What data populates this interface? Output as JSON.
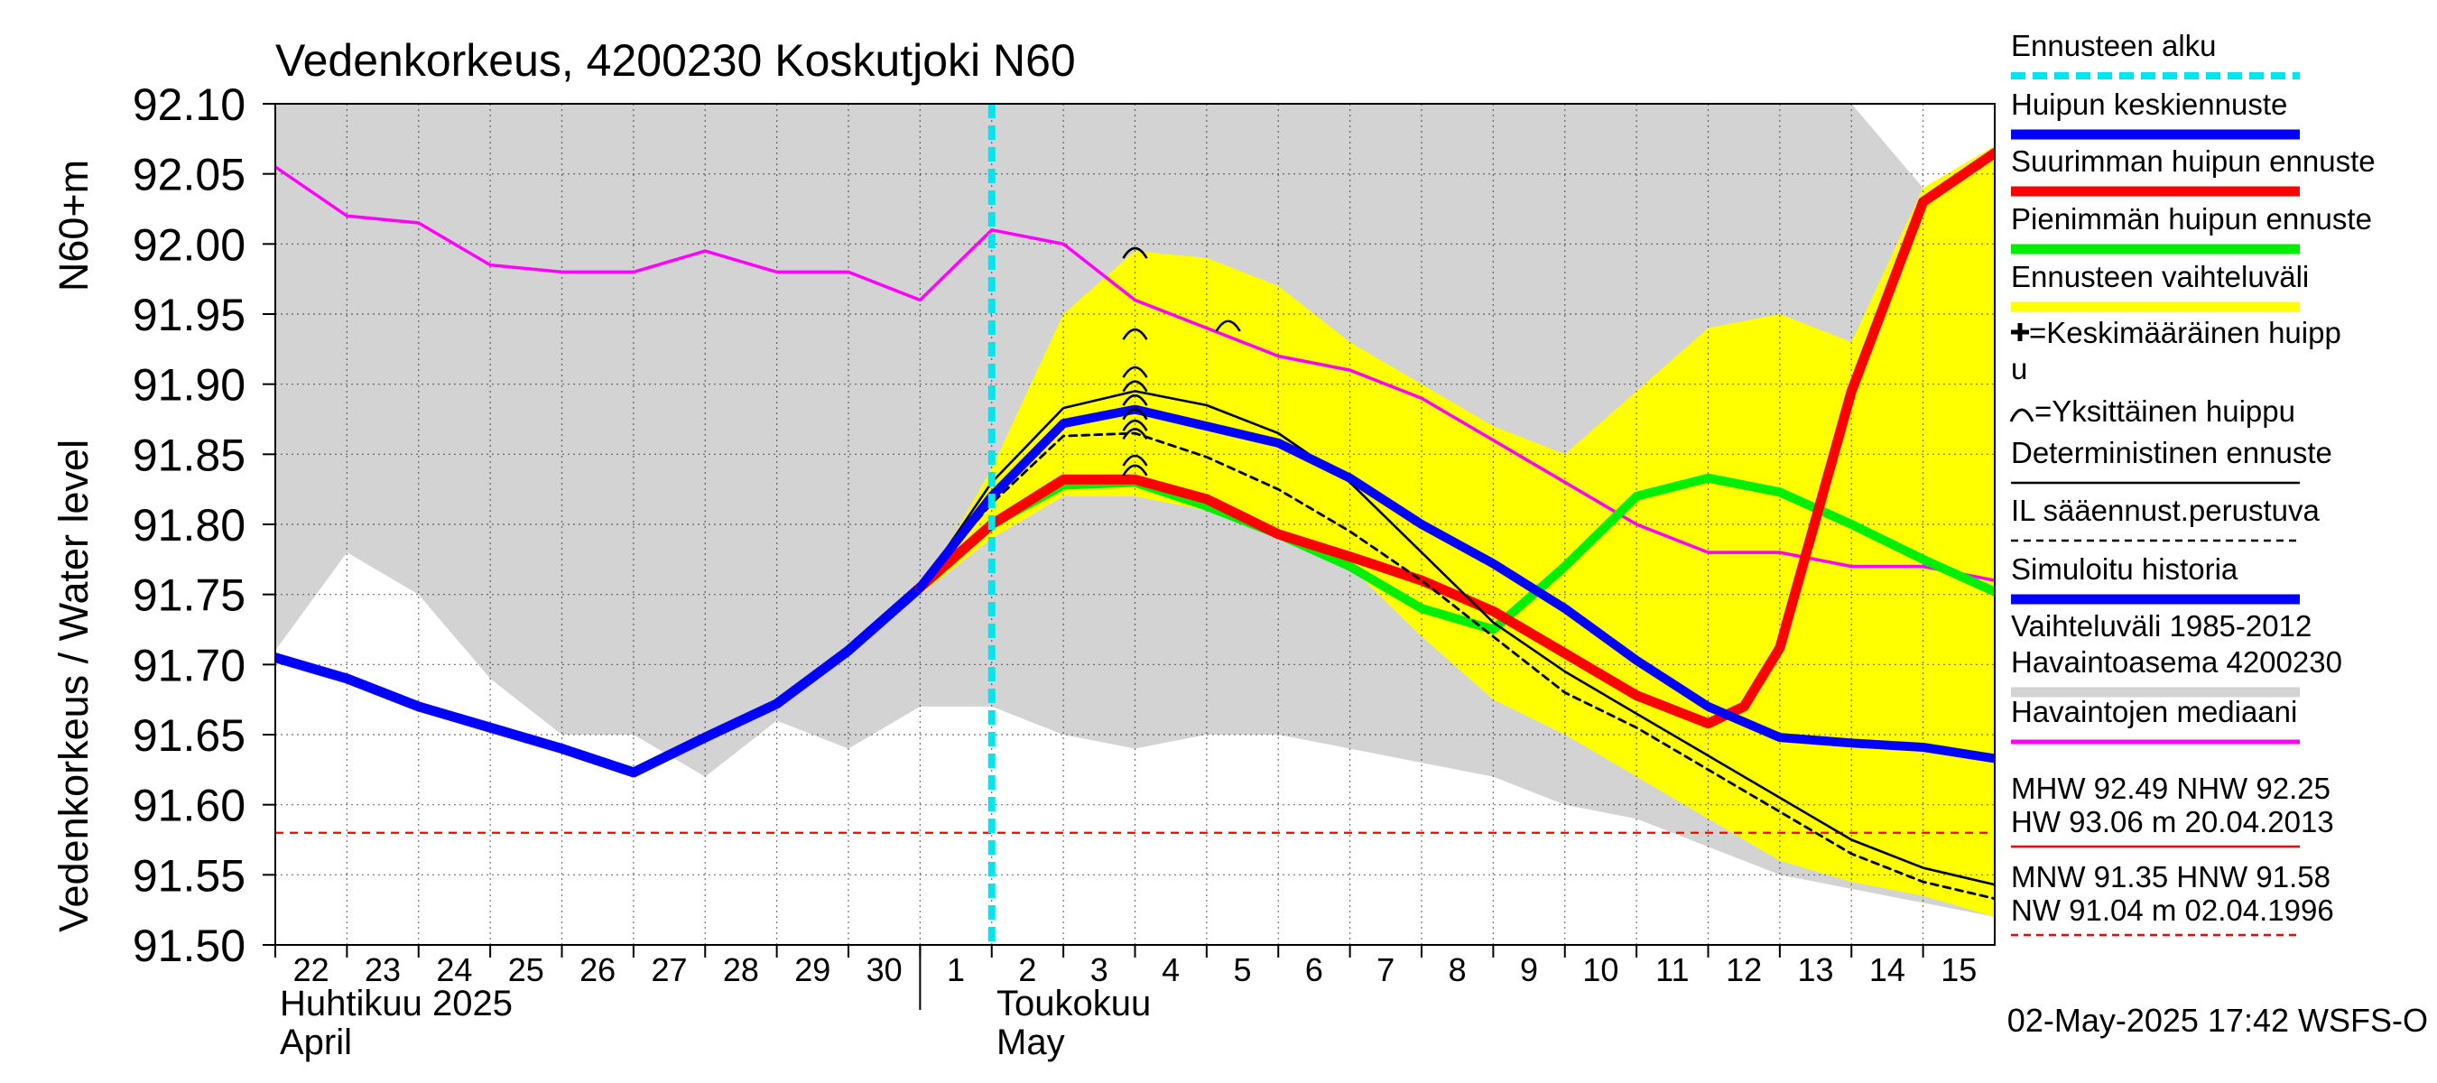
{
  "chart_data": {
    "type": "line",
    "title": "Vedenkorkeus, 4200230 Koskutjoki N60",
    "ylabel": "Vedenkorkeus / Water level",
    "ylabel_unit": "N60+m",
    "ylim": [
      91.5,
      92.1
    ],
    "yticks": [
      "92.10",
      "92.05",
      "92.00",
      "91.95",
      "91.90",
      "91.85",
      "91.80",
      "91.75",
      "91.70",
      "91.65",
      "91.60",
      "91.55",
      "91.50"
    ],
    "xlim": [
      0,
      24
    ],
    "xtick_labels": [
      "22",
      "23",
      "24",
      "25",
      "26",
      "27",
      "28",
      "29",
      "30",
      "1",
      "2",
      "3",
      "4",
      "5",
      "6",
      "7",
      "8",
      "9",
      "10",
      "11",
      "12",
      "13",
      "14",
      "15"
    ],
    "month_labels": {
      "april_fi": "Huhtikuu  2025",
      "april_en": "April",
      "may_fi": "Toukokuu",
      "may_en": "May"
    },
    "forecast_start_x": 10.0,
    "grid": true,
    "legend_position": "right",
    "legend": [
      {
        "label": "Ennusteen alku",
        "color": "#00e5ee",
        "style": "dashed-thick"
      },
      {
        "label": "Huipun keskiennuste",
        "color": "#0000ff",
        "style": "thick"
      },
      {
        "label": "Suurimman huipun ennuste",
        "color": "#ff0000",
        "style": "thick"
      },
      {
        "label": "Pienimmän huipun ennuste",
        "color": "#00ee00",
        "style": "thick"
      },
      {
        "label": "Ennusteen vaihteluväli",
        "color": "#ffff00",
        "style": "thick"
      },
      {
        "label": "=Keskimääräinen huipp",
        "label2": "u",
        "symbol": "plus"
      },
      {
        "label": "=Yksittäinen huippu",
        "symbol": "arc"
      },
      {
        "label": "Deterministinen ennuste",
        "color": "#000000",
        "style": "thin"
      },
      {
        "label": "IL sääennust.perustuva",
        "color": "#000000",
        "style": "dashed"
      },
      {
        "label": "Simuloitu historia",
        "color": "#0000ff",
        "style": "thick"
      },
      {
        "label": "Vaihteluväli 1985-2012",
        "label2": " Havaintoasema 4200230",
        "color": "#d3d3d3",
        "style": "thick"
      },
      {
        "label": "Havaintojen mediaani",
        "color": "#ff00ff",
        "style": "medium"
      }
    ],
    "stats": {
      "line1": "MHW  92.49 NHW  92.25",
      "line2": "HW  93.06 m 20.04.2013",
      "line3": "MNW  91.35 HNW  91.58",
      "line4": "NW  91.04 m 02.04.1996",
      "hnw_level": 91.58
    },
    "footer": "02-May-2025 17:42 WSFS-O",
    "series": [
      {
        "name": "Vaihteluväli 1985-2012",
        "kind": "band",
        "color": "#d3d3d3",
        "x": [
          0,
          1,
          2,
          3,
          4,
          5,
          6,
          7,
          8,
          9,
          10,
          11,
          12,
          13,
          14,
          15,
          16,
          17,
          18,
          19,
          20,
          21,
          22,
          23,
          24
        ],
        "upper": [
          92.1,
          92.1,
          92.1,
          92.1,
          92.1,
          92.1,
          92.1,
          92.1,
          92.1,
          92.1,
          92.1,
          92.1,
          92.1,
          92.1,
          92.1,
          92.1,
          92.1,
          92.1,
          92.1,
          92.1,
          92.1,
          92.1,
          92.1,
          92.04,
          91.98
        ],
        "lower": [
          91.71,
          91.78,
          91.75,
          91.69,
          91.65,
          91.65,
          91.62,
          91.66,
          91.64,
          91.67,
          91.67,
          91.65,
          91.64,
          91.65,
          91.65,
          91.64,
          91.63,
          91.62,
          91.6,
          91.59,
          91.57,
          91.55,
          91.54,
          91.53,
          91.52
        ]
      },
      {
        "name": "Ennusteen vaihteluväli",
        "kind": "band",
        "color": "#ffff00",
        "x": [
          9,
          10,
          11,
          12,
          13,
          14,
          15,
          16,
          17,
          18,
          19,
          20,
          21,
          22,
          23,
          24
        ],
        "upper": [
          91.75,
          91.84,
          91.95,
          91.995,
          91.99,
          91.97,
          91.93,
          91.9,
          91.87,
          91.85,
          91.895,
          91.94,
          91.95,
          91.93,
          92.04,
          92.07
        ],
        "lower": [
          91.75,
          91.79,
          91.82,
          91.82,
          91.81,
          91.79,
          91.77,
          91.72,
          91.675,
          91.65,
          91.62,
          91.59,
          91.56,
          91.545,
          91.535,
          91.52
        ]
      },
      {
        "name": "Havaintojen mediaani",
        "color": "#ff00ff",
        "x": [
          0,
          1,
          2,
          3,
          4,
          5,
          6,
          7,
          8,
          9,
          10,
          11,
          12,
          13,
          14,
          15,
          16,
          17,
          18,
          19,
          20,
          21,
          22,
          23,
          24
        ],
        "values": [
          92.055,
          92.02,
          92.015,
          91.985,
          91.98,
          91.98,
          91.995,
          91.98,
          91.98,
          91.96,
          92.01,
          92.0,
          91.96,
          91.94,
          91.92,
          91.91,
          91.89,
          91.86,
          91.83,
          91.8,
          91.78,
          91.78,
          91.77,
          91.77,
          91.76
        ]
      },
      {
        "name": "Simuloitu historia",
        "color": "#0000ff",
        "x": [
          0,
          1,
          2,
          3,
          4,
          5,
          6,
          7,
          8,
          9
        ],
        "values": [
          91.705,
          91.69,
          91.67,
          91.655,
          91.64,
          91.623,
          91.648,
          91.672,
          91.71,
          91.755
        ]
      },
      {
        "name": "Deterministinen ennuste",
        "color": "#000000",
        "x": [
          9,
          10,
          11,
          12,
          13,
          14,
          15,
          16,
          17,
          18,
          19,
          20,
          21,
          22,
          23,
          24
        ],
        "values": [
          91.755,
          91.83,
          91.883,
          91.895,
          91.885,
          91.865,
          91.83,
          91.78,
          91.73,
          91.695,
          91.665,
          91.635,
          91.605,
          91.575,
          91.555,
          91.543
        ]
      },
      {
        "name": "IL sääennust.perustuva",
        "color": "#000000",
        "x": [
          9,
          10,
          11,
          12,
          13,
          14,
          15,
          16,
          17,
          18,
          19,
          20,
          21,
          22,
          23,
          24
        ],
        "values": [
          91.755,
          91.815,
          91.863,
          91.865,
          91.848,
          91.825,
          91.795,
          91.76,
          91.72,
          91.68,
          91.655,
          91.625,
          91.595,
          91.565,
          91.545,
          91.533
        ]
      },
      {
        "name": "Pienimmän huipun ennuste",
        "color": "#00ee00",
        "x": [
          9,
          10,
          11,
          12,
          13,
          14,
          15,
          16,
          17,
          18,
          19,
          20,
          21,
          22,
          23,
          24
        ],
        "values": [
          91.755,
          91.8,
          91.828,
          91.83,
          91.813,
          91.793,
          91.77,
          91.74,
          91.725,
          91.77,
          91.82,
          91.833,
          91.823,
          91.8,
          91.775,
          91.752
        ]
      },
      {
        "name": "Suurimman huipun ennuste",
        "color": "#ff0000",
        "x": [
          9,
          10,
          11,
          12,
          13,
          14,
          15,
          16,
          17,
          18,
          19,
          20,
          20.5,
          21,
          22,
          23,
          24
        ],
        "values": [
          91.755,
          91.8,
          91.832,
          91.832,
          91.818,
          91.793,
          91.777,
          91.76,
          91.738,
          91.708,
          91.678,
          91.658,
          91.67,
          91.712,
          91.895,
          92.03,
          92.065
        ]
      },
      {
        "name": "Huipun keskiennuste",
        "color": "#0000ff",
        "x": [
          9,
          10,
          11,
          12,
          13,
          14,
          15,
          16,
          17,
          18,
          19,
          20,
          21,
          22,
          23,
          24
        ],
        "values": [
          91.755,
          91.82,
          91.872,
          91.882,
          91.87,
          91.858,
          91.833,
          91.8,
          91.772,
          91.74,
          91.703,
          91.67,
          91.648,
          91.644,
          91.641,
          91.633
        ]
      }
    ],
    "single_peaks": [
      {
        "x": 12,
        "y": 91.995
      },
      {
        "x": 12,
        "y": 91.937
      },
      {
        "x": 12,
        "y": 91.91
      },
      {
        "x": 12,
        "y": 91.9
      },
      {
        "x": 12,
        "y": 91.89
      },
      {
        "x": 12,
        "y": 91.88
      },
      {
        "x": 12,
        "y": 91.872
      },
      {
        "x": 12,
        "y": 91.866
      },
      {
        "x": 12,
        "y": 91.847
      },
      {
        "x": 12,
        "y": 91.84
      },
      {
        "x": 13.3,
        "y": 91.943
      }
    ]
  }
}
